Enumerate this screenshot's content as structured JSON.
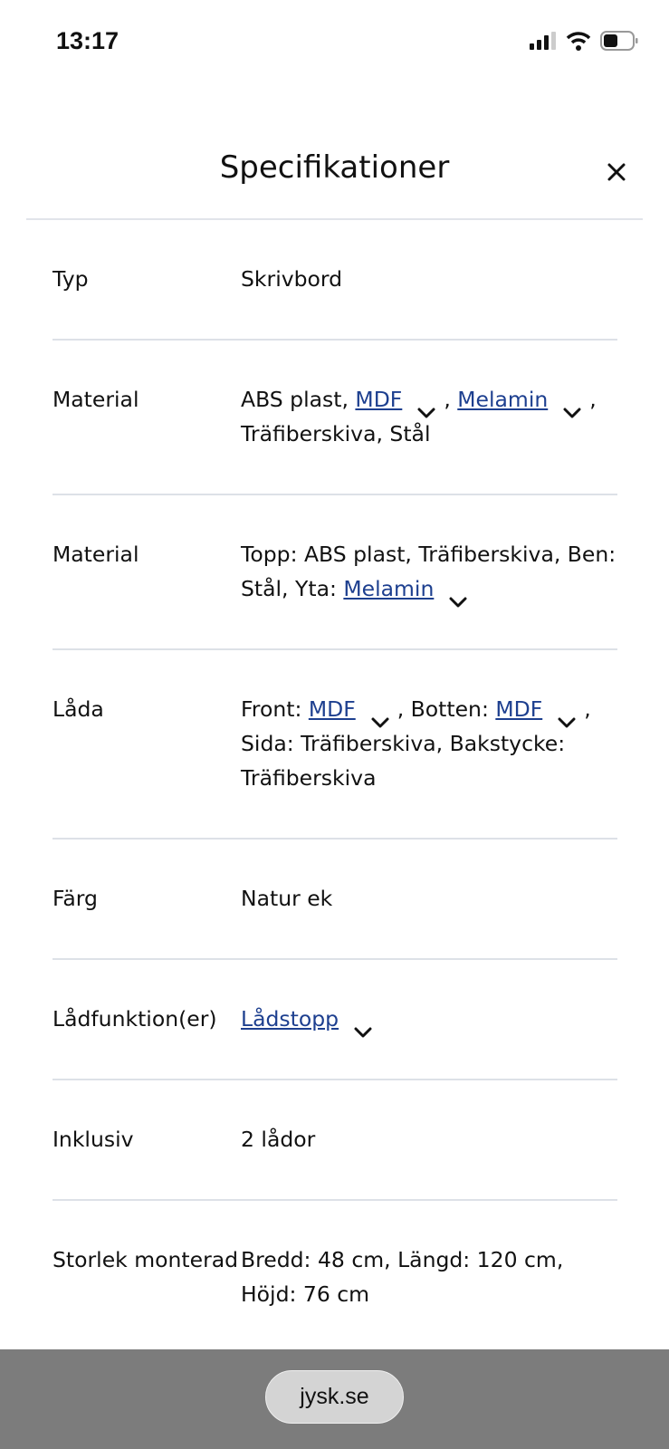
{
  "status_bar": {
    "time": "13:17",
    "icons": [
      "signal-icon",
      "wifi-icon",
      "battery-icon"
    ]
  },
  "header": {
    "title": "Specifikationer",
    "close_icon": "close-icon"
  },
  "colors": {
    "link": "#1d3f8f",
    "divider": "#dde1e7",
    "bottom_bar": "#7c7c7c"
  },
  "specs": [
    {
      "label": "Typ",
      "parts": [
        {
          "t": "Skrivbord"
        }
      ]
    },
    {
      "label": "Material",
      "parts": [
        {
          "t": "ABS plast, "
        },
        {
          "link": "MDF"
        },
        {
          "t": ", "
        },
        {
          "link": "Melamin"
        },
        {
          "t": ", Träfiberskiva, Stål"
        }
      ]
    },
    {
      "label": "Material",
      "parts": [
        {
          "t": "Topp: ABS plast, Träfiberskiva, Ben: Stål, Yta: "
        },
        {
          "link": "Melamin"
        }
      ]
    },
    {
      "label": "Låda",
      "parts": [
        {
          "t": "Front: "
        },
        {
          "link": "MDF"
        },
        {
          "t": ", Botten: "
        },
        {
          "link": "MDF"
        },
        {
          "t": ", Sida: Träfiberskiva, Bakstycke: Träfiberskiva"
        }
      ]
    },
    {
      "label": "Färg",
      "parts": [
        {
          "t": "Natur ek"
        }
      ]
    },
    {
      "label": "Lådfunktion(er)",
      "parts": [
        {
          "link": "Lådstopp"
        }
      ]
    },
    {
      "label": "Inklusiv",
      "parts": [
        {
          "t": "2 lådor"
        }
      ]
    },
    {
      "label": "Storlek monte­rad",
      "parts": [
        {
          "t": "Bredd: 48 cm, Längd: 120 cm, Höjd: 76 cm"
        }
      ]
    }
  ],
  "browser": {
    "url": "jysk.se"
  }
}
